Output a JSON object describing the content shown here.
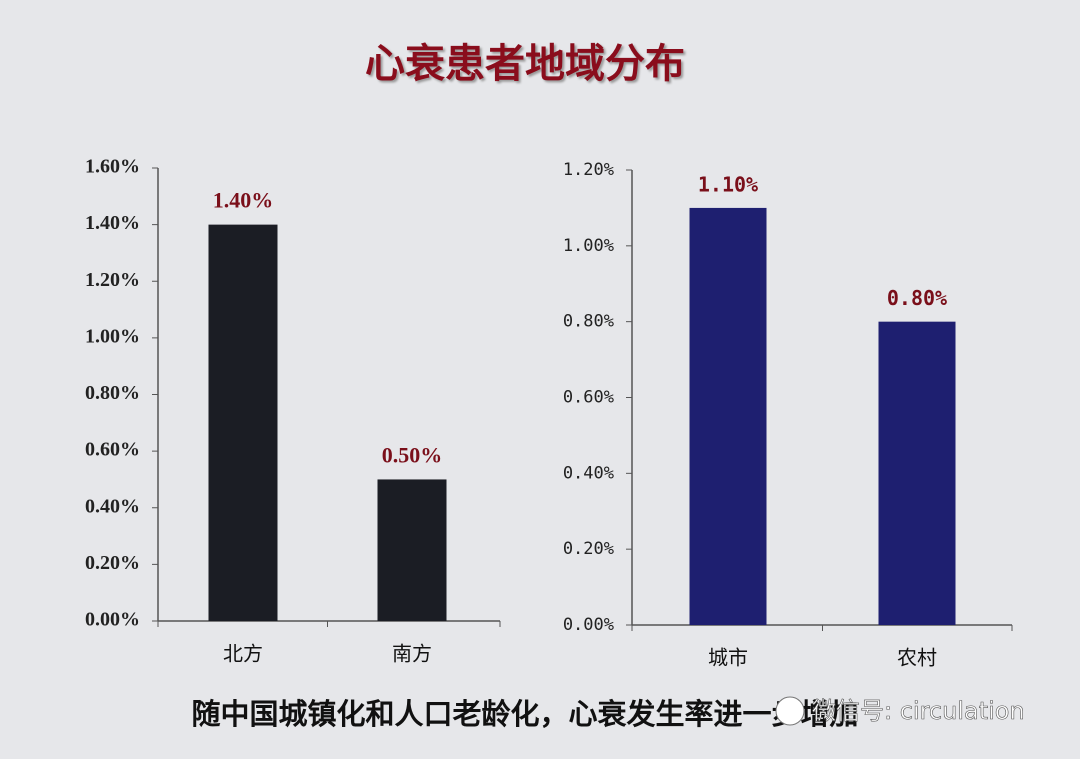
{
  "title": "心衰患者地域分布",
  "footer": "随中国城镇化和人口老龄化，心衰发生率进一步增加",
  "watermark": "微信号: circulation",
  "chart_data": [
    {
      "type": "bar",
      "categories": [
        "北方",
        "南方"
      ],
      "values": [
        1.4,
        0.5
      ],
      "value_labels": [
        "1.40%",
        "0.50%"
      ],
      "color": "#1b1d24",
      "value_label_color": "#7a0f1a",
      "ylim": [
        0,
        1.6
      ],
      "yticks": [
        {
          "value": 0,
          "label": "0.00%"
        },
        {
          "value": 0.2,
          "label": "0.20%"
        },
        {
          "value": 0.4,
          "label": "0.40%"
        },
        {
          "value": 0.6,
          "label": "0.60%"
        },
        {
          "value": 0.8,
          "label": "0.80%"
        },
        {
          "value": 1,
          "label": "1.00%"
        },
        {
          "value": 1.2,
          "label": "1.20%"
        },
        {
          "value": 1.4,
          "label": "1.40%"
        },
        {
          "value": 1.6,
          "label": "1.60%"
        }
      ]
    },
    {
      "type": "bar",
      "categories": [
        "城市",
        "农村"
      ],
      "values": [
        1.1,
        0.8
      ],
      "value_labels": [
        "1.10%",
        "0.80%"
      ],
      "color": "#1e1f70",
      "value_label_color": "#7a0f1a",
      "ylim": [
        0,
        1.2
      ],
      "yticks": [
        {
          "value": 0,
          "label": "0.00%"
        },
        {
          "value": 0.2,
          "label": "0.20%"
        },
        {
          "value": 0.4,
          "label": "0.40%"
        },
        {
          "value": 0.6,
          "label": "0.60%"
        },
        {
          "value": 0.8,
          "label": "0.80%"
        },
        {
          "value": 1,
          "label": "1.00%"
        },
        {
          "value": 1.2,
          "label": "1.20%"
        }
      ]
    }
  ]
}
